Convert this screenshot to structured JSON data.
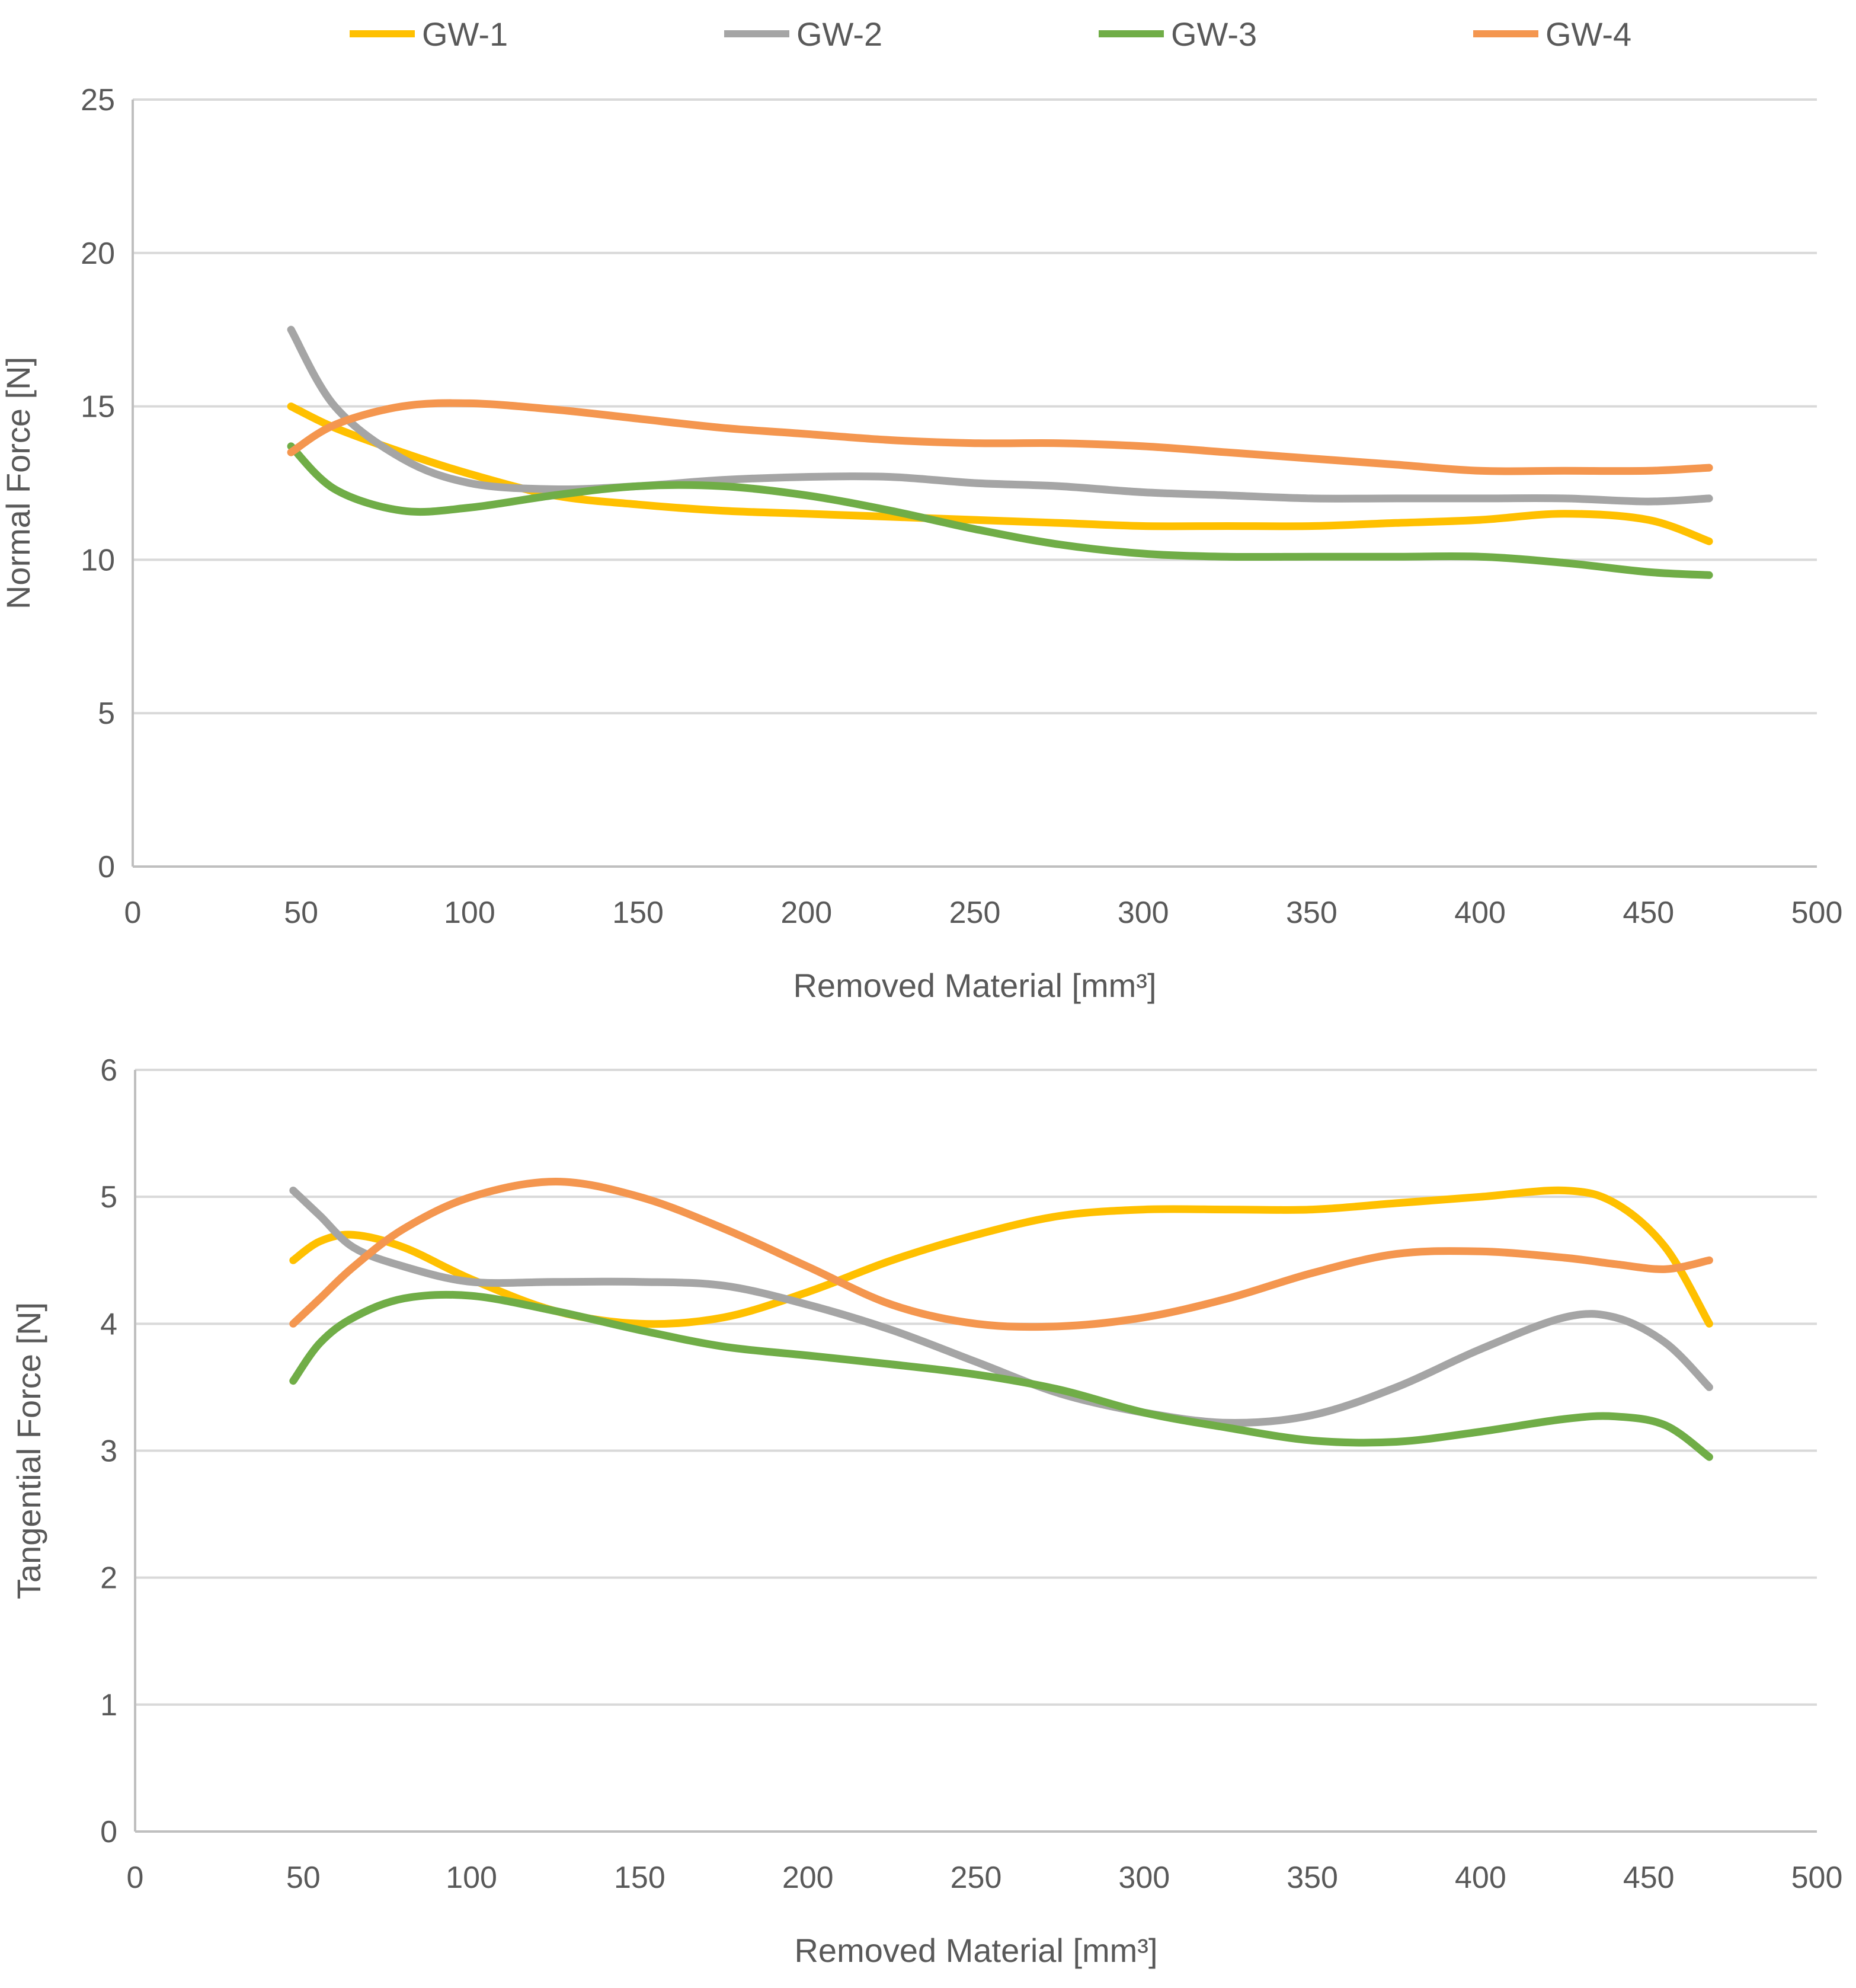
{
  "legend": [
    {
      "name": "GW-1",
      "color": "#FFC000"
    },
    {
      "name": "GW-2",
      "color": "#A5A5A5"
    },
    {
      "name": "GW-3",
      "color": "#70AD47"
    },
    {
      "name": "GW-4",
      "color": "#F4964F"
    }
  ],
  "chart_data": [
    {
      "type": "line",
      "title": "",
      "xlabel": "Removed Material [mm³]",
      "ylabel": "Normal Force [N]",
      "xlim": [
        0,
        500
      ],
      "ylim": [
        0,
        25
      ],
      "xticks": [
        "0",
        "50",
        "100",
        "150",
        "200",
        "250",
        "300",
        "350",
        "400",
        "450",
        "500"
      ],
      "yticks": [
        "0",
        "5",
        "10",
        "15",
        "20",
        "25"
      ],
      "x": [
        47,
        60,
        80,
        100,
        125,
        150,
        175,
        200,
        225,
        250,
        275,
        300,
        325,
        350,
        375,
        400,
        425,
        450,
        468
      ],
      "series": [
        {
          "name": "GW-1",
          "color": "#FFC000",
          "values": [
            15.0,
            14.3,
            13.5,
            12.8,
            12.1,
            11.8,
            11.6,
            11.5,
            11.4,
            11.3,
            11.2,
            11.1,
            11.1,
            11.1,
            11.2,
            11.3,
            11.5,
            11.3,
            10.6
          ]
        },
        {
          "name": "GW-2",
          "color": "#A5A5A5",
          "values": [
            17.5,
            15.0,
            13.3,
            12.5,
            12.3,
            12.4,
            12.6,
            12.7,
            12.7,
            12.5,
            12.4,
            12.2,
            12.1,
            12.0,
            12.0,
            12.0,
            12.0,
            11.9,
            12.0
          ]
        },
        {
          "name": "GW-3",
          "color": "#70AD47",
          "values": [
            13.7,
            12.3,
            11.6,
            11.7,
            12.1,
            12.4,
            12.4,
            12.1,
            11.6,
            11.0,
            10.5,
            10.2,
            10.1,
            10.1,
            10.1,
            10.1,
            9.9,
            9.6,
            9.5
          ]
        },
        {
          "name": "GW-4",
          "color": "#F4964F",
          "values": [
            13.5,
            14.4,
            15.0,
            15.1,
            14.9,
            14.6,
            14.3,
            14.1,
            13.9,
            13.8,
            13.8,
            13.7,
            13.5,
            13.3,
            13.1,
            12.9,
            12.9,
            12.9,
            13.0
          ]
        }
      ]
    },
    {
      "type": "line",
      "title": "",
      "xlabel": "Removed Material [mm³]",
      "ylabel": "Tangential Force [N]",
      "xlim": [
        0,
        500
      ],
      "ylim": [
        0,
        6
      ],
      "xticks": [
        "0",
        "50",
        "100",
        "150",
        "200",
        "250",
        "300",
        "350",
        "400",
        "450",
        "500"
      ],
      "yticks": [
        "0",
        "1",
        "2",
        "3",
        "4",
        "5",
        "6"
      ],
      "x": [
        47,
        55,
        65,
        80,
        100,
        125,
        150,
        175,
        200,
        225,
        250,
        275,
        300,
        325,
        350,
        375,
        400,
        425,
        440,
        455,
        468
      ],
      "series": [
        {
          "name": "GW-1",
          "color": "#FFC000",
          "values": [
            4.5,
            4.65,
            4.7,
            4.6,
            4.35,
            4.1,
            4.0,
            4.05,
            4.25,
            4.5,
            4.7,
            4.85,
            4.9,
            4.9,
            4.9,
            4.95,
            5.0,
            5.05,
            4.95,
            4.6,
            4.0
          ]
        },
        {
          "name": "GW-2",
          "color": "#A5A5A5",
          "values": [
            5.05,
            4.85,
            4.6,
            4.45,
            4.33,
            4.33,
            4.33,
            4.3,
            4.15,
            3.95,
            3.7,
            3.45,
            3.3,
            3.22,
            3.28,
            3.5,
            3.8,
            4.05,
            4.05,
            3.85,
            3.5
          ]
        },
        {
          "name": "GW-3",
          "color": "#70AD47",
          "values": [
            3.55,
            3.85,
            4.05,
            4.2,
            4.22,
            4.1,
            3.95,
            3.82,
            3.75,
            3.68,
            3.6,
            3.48,
            3.3,
            3.18,
            3.08,
            3.07,
            3.15,
            3.25,
            3.27,
            3.2,
            2.95
          ]
        },
        {
          "name": "GW-4",
          "color": "#F4964F",
          "values": [
            4.0,
            4.2,
            4.45,
            4.75,
            5.0,
            5.12,
            5.0,
            4.75,
            4.45,
            4.15,
            4.0,
            3.98,
            4.05,
            4.2,
            4.4,
            4.55,
            4.57,
            4.52,
            4.47,
            4.43,
            4.5
          ]
        }
      ]
    }
  ]
}
